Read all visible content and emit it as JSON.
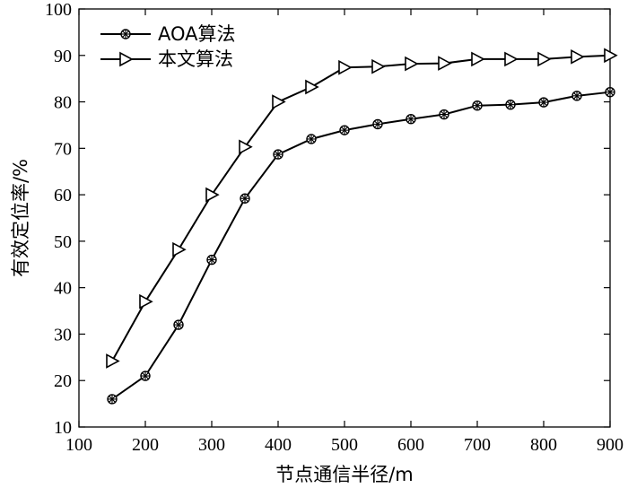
{
  "chart_data": {
    "type": "line",
    "xlabel": "节点通信半径/m",
    "ylabel": "有效定位率/%",
    "xlim": [
      100,
      900
    ],
    "ylim": [
      10,
      100
    ],
    "xticks": [
      100,
      200,
      300,
      400,
      500,
      600,
      700,
      800,
      900
    ],
    "yticks": [
      10,
      20,
      30,
      40,
      50,
      60,
      70,
      80,
      90,
      100
    ],
    "grid": false,
    "legend_position": "top-left",
    "x": [
      150,
      200,
      250,
      300,
      350,
      400,
      450,
      500,
      550,
      600,
      650,
      700,
      750,
      800,
      850,
      900
    ],
    "series": [
      {
        "name": "AOA算法",
        "marker": "star",
        "color": "#000000",
        "values": [
          16,
          21,
          32,
          46,
          59.2,
          68.7,
          72,
          73.9,
          75.2,
          76.3,
          77.3,
          79.2,
          79.4,
          79.9,
          81.3,
          82.1
        ]
      },
      {
        "name": "本文算法",
        "marker": "triangle-right",
        "color": "#000000",
        "values": [
          24.2,
          37,
          48.2,
          60,
          70.3,
          80,
          83.2,
          87.4,
          87.6,
          88.2,
          88.3,
          89.2,
          89.2,
          89.2,
          89.7,
          90
        ]
      }
    ]
  }
}
